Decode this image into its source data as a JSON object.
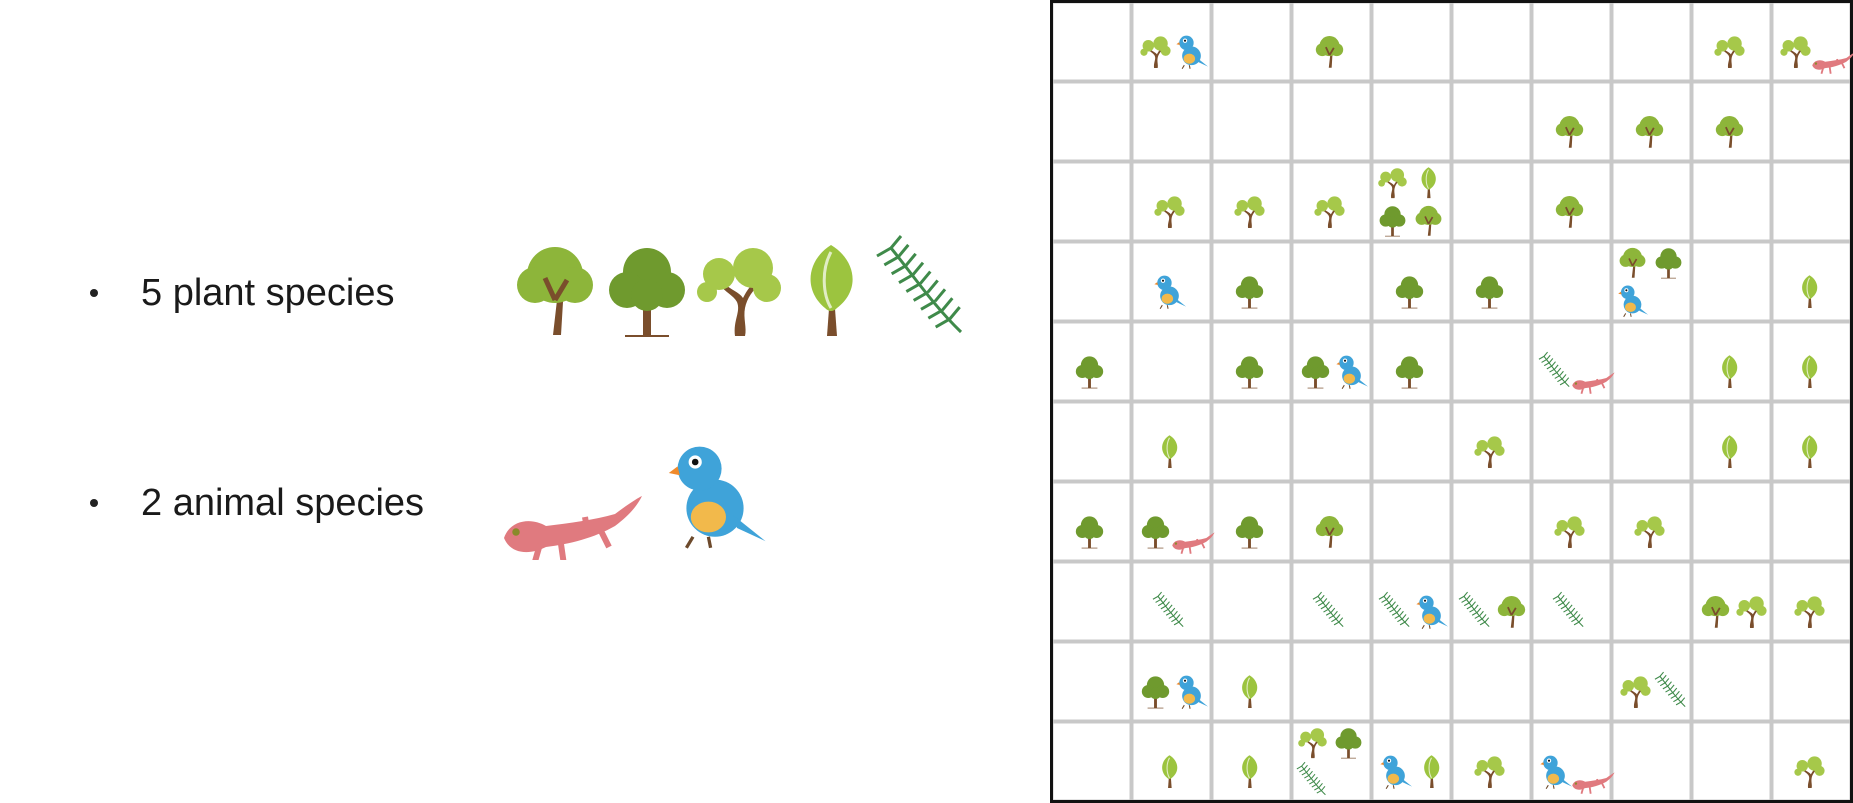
{
  "legend": {
    "plants_label": "5 plant species",
    "animals_label": "2 animal species"
  },
  "colors": {
    "grid_line": "#c8c8c8",
    "border": "#111111",
    "tree_a": "#8db53a",
    "tree_b": "#6f9a2e",
    "tree_c": "#a6c84a",
    "leaf_tree": "#9cc43f",
    "fern": "#3f8a4a",
    "trunk": "#7a4e2c",
    "salamander": "#e07a7f",
    "bird_body": "#3fa3d9",
    "bird_belly": "#f2b94b"
  },
  "species": {
    "plants": [
      "tree-a-icon",
      "tree-b-icon",
      "tree-c-icon",
      "tree-d-icon",
      "fern-icon"
    ],
    "animals": [
      "salamander-icon",
      "bird-icon"
    ]
  },
  "grid": {
    "rows": 10,
    "cols": 10,
    "cells": [
      {
        "r": 0,
        "c": 1,
        "items": [
          "tree-c-icon",
          "bird-icon"
        ]
      },
      {
        "r": 0,
        "c": 3,
        "items": [
          "tree-a-icon"
        ]
      },
      {
        "r": 0,
        "c": 8,
        "items": [
          "tree-c-icon"
        ]
      },
      {
        "r": 0,
        "c": 9,
        "items": [
          "tree-c-icon",
          "salamander-icon"
        ]
      },
      {
        "r": 1,
        "c": 6,
        "items": [
          "tree-a-icon"
        ]
      },
      {
        "r": 1,
        "c": 7,
        "items": [
          "tree-a-icon"
        ]
      },
      {
        "r": 1,
        "c": 8,
        "items": [
          "tree-a-icon"
        ]
      },
      {
        "r": 2,
        "c": 1,
        "items": [
          "tree-c-icon"
        ]
      },
      {
        "r": 2,
        "c": 2,
        "items": [
          "tree-c-icon"
        ]
      },
      {
        "r": 2,
        "c": 3,
        "items": [
          "tree-c-icon"
        ]
      },
      {
        "r": 2,
        "c": 4,
        "items": [
          "tree-c-icon",
          "tree-d-icon",
          "tree-b-icon",
          "tree-a-icon"
        ]
      },
      {
        "r": 2,
        "c": 6,
        "items": [
          "tree-a-icon"
        ]
      },
      {
        "r": 3,
        "c": 1,
        "items": [
          "bird-icon"
        ]
      },
      {
        "r": 3,
        "c": 2,
        "items": [
          "tree-b-icon"
        ]
      },
      {
        "r": 3,
        "c": 4,
        "items": [
          "tree-b-icon"
        ]
      },
      {
        "r": 3,
        "c": 5,
        "items": [
          "tree-b-icon"
        ]
      },
      {
        "r": 3,
        "c": 7,
        "items": [
          "tree-a-icon",
          "tree-b-icon",
          "bird-icon"
        ]
      },
      {
        "r": 3,
        "c": 9,
        "items": [
          "tree-d-icon"
        ]
      },
      {
        "r": 4,
        "c": 0,
        "items": [
          "tree-b-icon"
        ]
      },
      {
        "r": 4,
        "c": 2,
        "items": [
          "tree-b-icon"
        ]
      },
      {
        "r": 4,
        "c": 3,
        "items": [
          "tree-b-icon",
          "bird-icon"
        ]
      },
      {
        "r": 4,
        "c": 4,
        "items": [
          "tree-b-icon"
        ]
      },
      {
        "r": 4,
        "c": 6,
        "items": [
          "fern-icon",
          "salamander-icon"
        ]
      },
      {
        "r": 4,
        "c": 8,
        "items": [
          "tree-d-icon"
        ]
      },
      {
        "r": 4,
        "c": 9,
        "items": [
          "tree-d-icon"
        ]
      },
      {
        "r": 5,
        "c": 1,
        "items": [
          "tree-d-icon"
        ]
      },
      {
        "r": 5,
        "c": 5,
        "items": [
          "tree-c-icon"
        ]
      },
      {
        "r": 5,
        "c": 8,
        "items": [
          "tree-d-icon"
        ]
      },
      {
        "r": 5,
        "c": 9,
        "items": [
          "tree-d-icon"
        ]
      },
      {
        "r": 6,
        "c": 0,
        "items": [
          "tree-b-icon"
        ]
      },
      {
        "r": 6,
        "c": 1,
        "items": [
          "tree-b-icon",
          "salamander-icon"
        ]
      },
      {
        "r": 6,
        "c": 2,
        "items": [
          "tree-b-icon"
        ]
      },
      {
        "r": 6,
        "c": 3,
        "items": [
          "tree-a-icon"
        ]
      },
      {
        "r": 6,
        "c": 6,
        "items": [
          "tree-c-icon"
        ]
      },
      {
        "r": 6,
        "c": 7,
        "items": [
          "tree-c-icon"
        ]
      },
      {
        "r": 7,
        "c": 1,
        "items": [
          "fern-icon"
        ]
      },
      {
        "r": 7,
        "c": 3,
        "items": [
          "fern-icon"
        ]
      },
      {
        "r": 7,
        "c": 4,
        "items": [
          "fern-icon",
          "bird-icon"
        ]
      },
      {
        "r": 7,
        "c": 5,
        "items": [
          "fern-icon",
          "tree-a-icon"
        ]
      },
      {
        "r": 7,
        "c": 6,
        "items": [
          "fern-icon"
        ]
      },
      {
        "r": 7,
        "c": 8,
        "items": [
          "tree-a-icon",
          "tree-c-icon"
        ]
      },
      {
        "r": 7,
        "c": 9,
        "items": [
          "tree-c-icon"
        ]
      },
      {
        "r": 8,
        "c": 1,
        "items": [
          "tree-b-icon",
          "bird-icon"
        ]
      },
      {
        "r": 8,
        "c": 2,
        "items": [
          "tree-d-icon"
        ]
      },
      {
        "r": 8,
        "c": 7,
        "items": [
          "tree-c-icon",
          "fern-icon"
        ]
      },
      {
        "r": 9,
        "c": 1,
        "items": [
          "tree-d-icon"
        ]
      },
      {
        "r": 9,
        "c": 2,
        "items": [
          "tree-d-icon"
        ]
      },
      {
        "r": 9,
        "c": 3,
        "items": [
          "tree-c-icon",
          "tree-b-icon",
          "fern-icon"
        ]
      },
      {
        "r": 9,
        "c": 4,
        "items": [
          "bird-icon",
          "tree-d-icon"
        ]
      },
      {
        "r": 9,
        "c": 5,
        "items": [
          "tree-c-icon"
        ]
      },
      {
        "r": 9,
        "c": 6,
        "items": [
          "bird-icon",
          "salamander-icon"
        ]
      },
      {
        "r": 9,
        "c": 9,
        "items": [
          "tree-c-icon"
        ]
      }
    ]
  }
}
